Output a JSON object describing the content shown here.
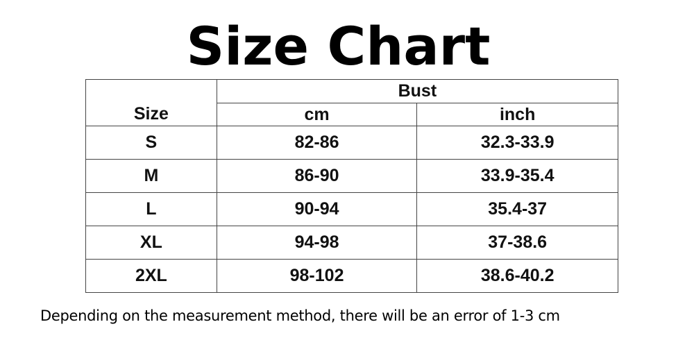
{
  "title": "Size Chart",
  "table": {
    "size_header": "Size",
    "group_header": "Bust",
    "unit_headers": [
      "cm",
      "inch"
    ],
    "rows": [
      {
        "size": "S",
        "cm": "82-86",
        "inch": "32.3-33.9"
      },
      {
        "size": "M",
        "cm": "86-90",
        "inch": "33.9-35.4"
      },
      {
        "size": "L",
        "cm": "90-94",
        "inch": "35.4-37"
      },
      {
        "size": "XL",
        "cm": "94-98",
        "inch": "37-38.6"
      },
      {
        "size": "2XL",
        "cm": "98-102",
        "inch": "38.6-40.2"
      }
    ]
  },
  "footer_note": "Depending on the measurement method, there will be an error of 1-3 cm"
}
